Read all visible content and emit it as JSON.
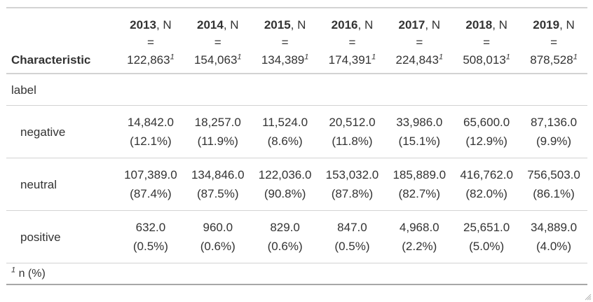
{
  "header": {
    "characteristic": "Characteristic",
    "n_eq": "=",
    "n_label": ", N",
    "footnote_mark": "1",
    "columns": [
      {
        "year": "2013",
        "n": "122,863"
      },
      {
        "year": "2014",
        "n": "154,063"
      },
      {
        "year": "2015",
        "n": "134,389"
      },
      {
        "year": "2016",
        "n": "174,391"
      },
      {
        "year": "2017",
        "n": "224,843"
      },
      {
        "year": "2018",
        "n": "508,013"
      },
      {
        "year": "2019",
        "n": "878,528"
      }
    ]
  },
  "group_label": "label",
  "rows": [
    {
      "label": "negative",
      "cells": [
        {
          "n": "14,842.0",
          "pct": "(12.1%)"
        },
        {
          "n": "18,257.0",
          "pct": "(11.9%)"
        },
        {
          "n": "11,524.0",
          "pct": "(8.6%)"
        },
        {
          "n": "20,512.0",
          "pct": "(11.8%)"
        },
        {
          "n": "33,986.0",
          "pct": "(15.1%)"
        },
        {
          "n": "65,600.0",
          "pct": "(12.9%)"
        },
        {
          "n": "87,136.0",
          "pct": "(9.9%)"
        }
      ]
    },
    {
      "label": "neutral",
      "cells": [
        {
          "n": "107,389.0",
          "pct": "(87.4%)"
        },
        {
          "n": "134,846.0",
          "pct": "(87.5%)"
        },
        {
          "n": "122,036.0",
          "pct": "(90.8%)"
        },
        {
          "n": "153,032.0",
          "pct": "(87.8%)"
        },
        {
          "n": "185,889.0",
          "pct": "(82.7%)"
        },
        {
          "n": "416,762.0",
          "pct": "(82.0%)"
        },
        {
          "n": "756,503.0",
          "pct": "(86.1%)"
        }
      ]
    },
    {
      "label": "positive",
      "cells": [
        {
          "n": "632.0",
          "pct": "(0.5%)"
        },
        {
          "n": "960.0",
          "pct": "(0.6%)"
        },
        {
          "n": "829.0",
          "pct": "(0.6%)"
        },
        {
          "n": "847.0",
          "pct": "(0.5%)"
        },
        {
          "n": "4,968.0",
          "pct": "(2.2%)"
        },
        {
          "n": "25,651.0",
          "pct": "(5.0%)"
        },
        {
          "n": "34,889.0",
          "pct": "(4.0%)"
        }
      ]
    }
  ],
  "footnote": {
    "mark": "1",
    "text": " n (%)"
  }
}
